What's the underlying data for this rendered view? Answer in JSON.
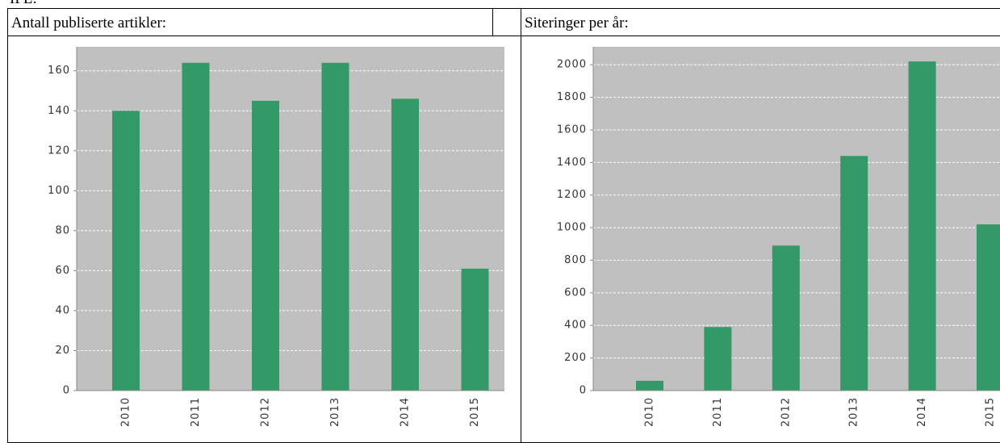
{
  "heading": "IPL:",
  "chart_data": [
    {
      "type": "bar",
      "title": "Antall publiserte artikler:",
      "categories": [
        "2010",
        "2011",
        "2012",
        "2013",
        "2014",
        "2015"
      ],
      "values": [
        140,
        164,
        145,
        164,
        146,
        61
      ],
      "color": "#339966",
      "ylim": [
        0,
        172
      ],
      "yticks": [
        0,
        20,
        40,
        60,
        80,
        100,
        120,
        140,
        160
      ],
      "grid": true
    },
    {
      "type": "bar",
      "title": "Siteringer per år:",
      "categories": [
        "2010",
        "2011",
        "2012",
        "2013",
        "2014",
        "2015"
      ],
      "values": [
        60,
        390,
        890,
        1440,
        2020,
        1020
      ],
      "color": "#339966",
      "ylim": [
        0,
        2110
      ],
      "yticks": [
        0,
        200,
        400,
        600,
        800,
        1000,
        1200,
        1400,
        1600,
        1800,
        2000
      ],
      "grid": true
    }
  ]
}
